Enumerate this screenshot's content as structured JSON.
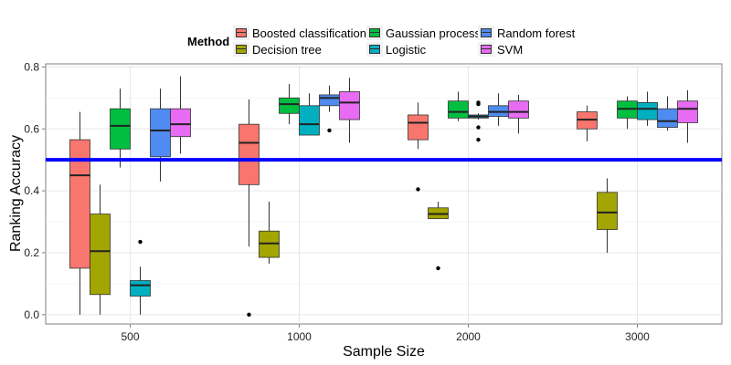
{
  "chart_data": {
    "type": "boxplot",
    "title": "",
    "xlabel": "Sample Size",
    "ylabel": "Ranking Accuracy",
    "categories": [
      "500",
      "1000",
      "2000",
      "3000"
    ],
    "ylim": [
      -0.03,
      0.81
    ],
    "yticks": [
      0.0,
      0.2,
      0.4,
      0.6,
      0.8
    ],
    "ytick_labels": [
      "0.0",
      "0.2",
      "0.4",
      "0.6",
      "0.8"
    ],
    "grid": true,
    "reference_line": {
      "y": 0.5,
      "color": "#0000ff"
    },
    "legend": {
      "title": "Method",
      "placement": "top",
      "entries": [
        {
          "name": "Boosted classification",
          "color": "#f8766d"
        },
        {
          "name": "Decision tree",
          "color": "#a3a500"
        },
        {
          "name": "Gaussian process",
          "color": "#00bf40"
        },
        {
          "name": "Logistic",
          "color": "#00b0c0"
        },
        {
          "name": "Random forest",
          "color": "#4f8bf0"
        },
        {
          "name": "SVM",
          "color": "#e76bf3"
        }
      ]
    },
    "series": [
      {
        "name": "Boosted classification",
        "color": "#f8766d",
        "boxes": [
          {
            "category": "500",
            "min": 0.0,
            "q1": 0.15,
            "median": 0.45,
            "q3": 0.565,
            "max": 0.655,
            "outliers": []
          },
          {
            "category": "1000",
            "min": 0.22,
            "q1": 0.42,
            "median": 0.555,
            "q3": 0.615,
            "max": 0.695,
            "outliers": [
              0.0
            ]
          },
          {
            "category": "2000",
            "min": 0.535,
            "q1": 0.565,
            "median": 0.62,
            "q3": 0.645,
            "max": 0.685,
            "outliers": [
              0.405
            ]
          },
          {
            "category": "3000",
            "min": 0.56,
            "q1": 0.6,
            "median": 0.63,
            "q3": 0.655,
            "max": 0.675,
            "outliers": []
          }
        ]
      },
      {
        "name": "Decision tree",
        "color": "#a3a500",
        "boxes": [
          {
            "category": "500",
            "min": 0.0,
            "q1": 0.065,
            "median": 0.205,
            "q3": 0.325,
            "max": 0.42,
            "outliers": []
          },
          {
            "category": "1000",
            "min": 0.165,
            "q1": 0.185,
            "median": 0.23,
            "q3": 0.27,
            "max": 0.365,
            "outliers": []
          },
          {
            "category": "2000",
            "min": 0.31,
            "q1": 0.31,
            "median": 0.325,
            "q3": 0.345,
            "max": 0.365,
            "outliers": [
              0.15
            ]
          },
          {
            "category": "3000",
            "min": 0.2,
            "q1": 0.275,
            "median": 0.33,
            "q3": 0.395,
            "max": 0.44,
            "outliers": []
          }
        ]
      },
      {
        "name": "Gaussian process",
        "color": "#00bf40",
        "boxes": [
          {
            "category": "500",
            "min": 0.475,
            "q1": 0.535,
            "median": 0.61,
            "q3": 0.665,
            "max": 0.73,
            "outliers": []
          },
          {
            "category": "1000",
            "min": 0.615,
            "q1": 0.65,
            "median": 0.68,
            "q3": 0.7,
            "max": 0.745,
            "outliers": []
          },
          {
            "category": "2000",
            "min": 0.625,
            "q1": 0.635,
            "median": 0.655,
            "q3": 0.69,
            "max": 0.72,
            "outliers": []
          },
          {
            "category": "3000",
            "min": 0.6,
            "q1": 0.635,
            "median": 0.665,
            "q3": 0.69,
            "max": 0.705,
            "outliers": []
          }
        ]
      },
      {
        "name": "Logistic",
        "color": "#00b0c0",
        "boxes": [
          {
            "category": "500",
            "min": 0.0,
            "q1": 0.06,
            "median": 0.095,
            "q3": 0.11,
            "max": 0.155,
            "outliers": [
              0.235
            ]
          },
          {
            "category": "1000",
            "min": 0.58,
            "q1": 0.58,
            "median": 0.615,
            "q3": 0.675,
            "max": 0.715,
            "outliers": []
          },
          {
            "category": "2000",
            "min": 0.63,
            "q1": 0.635,
            "median": 0.64,
            "q3": 0.645,
            "max": 0.65,
            "outliers": [
              0.565,
              0.605,
              0.68,
              0.685
            ]
          },
          {
            "category": "3000",
            "min": 0.61,
            "q1": 0.63,
            "median": 0.665,
            "q3": 0.685,
            "max": 0.72,
            "outliers": []
          }
        ]
      },
      {
        "name": "Random forest",
        "color": "#4f8bf0",
        "boxes": [
          {
            "category": "500",
            "min": 0.43,
            "q1": 0.51,
            "median": 0.595,
            "q3": 0.665,
            "max": 0.73,
            "outliers": []
          },
          {
            "category": "1000",
            "min": 0.655,
            "q1": 0.675,
            "median": 0.7,
            "q3": 0.71,
            "max": 0.74,
            "outliers": [
              0.595
            ]
          },
          {
            "category": "2000",
            "min": 0.61,
            "q1": 0.64,
            "median": 0.655,
            "q3": 0.675,
            "max": 0.715,
            "outliers": []
          },
          {
            "category": "3000",
            "min": 0.595,
            "q1": 0.605,
            "median": 0.625,
            "q3": 0.665,
            "max": 0.705,
            "outliers": []
          }
        ]
      },
      {
        "name": "SVM",
        "color": "#e76bf3",
        "boxes": [
          {
            "category": "500",
            "min": 0.52,
            "q1": 0.575,
            "median": 0.615,
            "q3": 0.665,
            "max": 0.77,
            "outliers": []
          },
          {
            "category": "1000",
            "min": 0.555,
            "q1": 0.63,
            "median": 0.685,
            "q3": 0.72,
            "max": 0.765,
            "outliers": []
          },
          {
            "category": "2000",
            "min": 0.585,
            "q1": 0.635,
            "median": 0.655,
            "q3": 0.69,
            "max": 0.71,
            "outliers": []
          },
          {
            "category": "3000",
            "min": 0.555,
            "q1": 0.62,
            "median": 0.665,
            "q3": 0.69,
            "max": 0.725,
            "outliers": []
          }
        ]
      }
    ]
  }
}
